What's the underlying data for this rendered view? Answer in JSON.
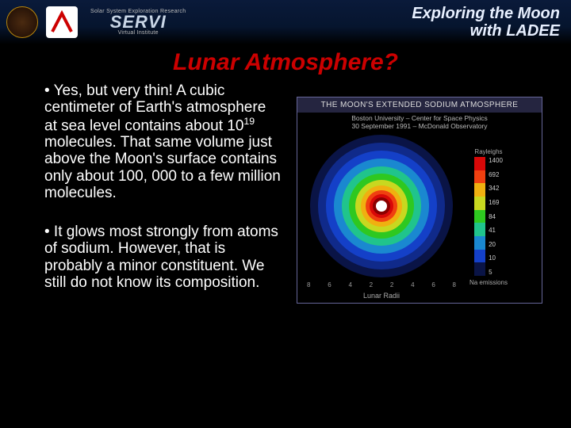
{
  "banner": {
    "top_small": "Solar System Exploration Research",
    "servi_text": "SERVI",
    "servi_sub": "Virtual Institute",
    "title_line1": "Exploring the Moon",
    "title_line2": "with LADEE"
  },
  "title": "Lunar Atmosphere?",
  "para1_pre": "• Yes, but very thin! A cubic centimeter of Earth's atmosphere at sea level contains about 10",
  "para1_exp": "19",
  "para1_post": " molecules. That same volume just above the Moon's surface contains only about 100, 000 to a few million molecules.",
  "para2": "• It glows most strongly from atoms of sodium. However, that is probably a minor constituent. We still do not know its composition.",
  "figure": {
    "title": "THE MOON'S EXTENDED SODIUM ATMOSPHERE",
    "subtitle": "Boston University – Center for Space Physics",
    "subtitle2": "30 September 1991 – McDonald Observatory",
    "xaxis_title": "Lunar Radii",
    "xaxis_ticks": [
      "8",
      "6",
      "4",
      "2",
      "2",
      "4",
      "6",
      "8"
    ],
    "colorbar_title": "Rayleighs",
    "colorbar_foot": "Na emissions",
    "colorbar_labels": [
      "1400",
      "692",
      "342",
      "169",
      "84",
      "41",
      "20",
      "10",
      "5"
    ],
    "rings": [
      {
        "d": 180,
        "c": "#0a1446"
      },
      {
        "d": 160,
        "c": "#102a8a"
      },
      {
        "d": 140,
        "c": "#1440c8"
      },
      {
        "d": 120,
        "c": "#1a88d0"
      },
      {
        "d": 100,
        "c": "#20c48c"
      },
      {
        "d": 82,
        "c": "#2ec820"
      },
      {
        "d": 66,
        "c": "#c8d820"
      },
      {
        "d": 52,
        "c": "#f0b010"
      },
      {
        "d": 40,
        "c": "#f04010"
      },
      {
        "d": 30,
        "c": "#d80808"
      }
    ],
    "colorbar_colors": [
      "#d80808",
      "#f04010",
      "#f0b010",
      "#c8d820",
      "#2ec820",
      "#20c48c",
      "#1a88d0",
      "#1440c8",
      "#0a1446"
    ]
  }
}
